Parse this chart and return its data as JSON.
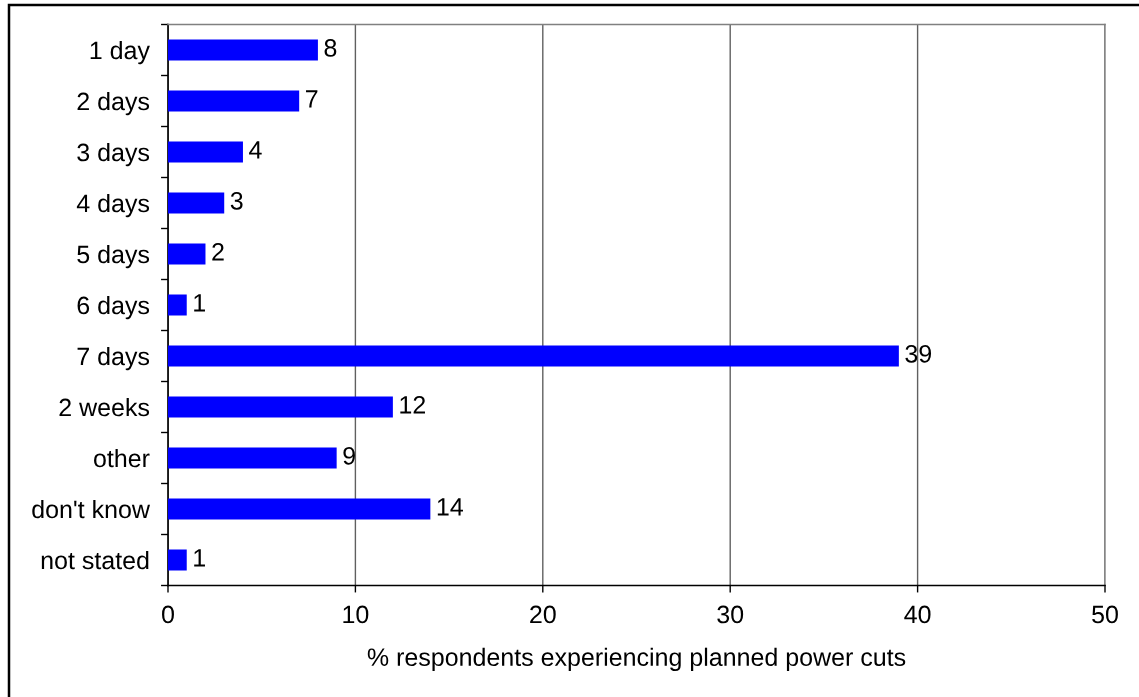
{
  "chart_data": {
    "type": "bar",
    "orientation": "horizontal",
    "categories": [
      "1 day",
      "2 days",
      "3 days",
      "4 days",
      "5 days",
      "6 days",
      "7 days",
      "2 weeks",
      "other",
      "don't know",
      "not stated"
    ],
    "values": [
      8,
      7,
      4,
      3,
      2,
      1,
      39,
      12,
      9,
      14,
      1
    ],
    "color": "#0000ff",
    "xlim": [
      0,
      50
    ],
    "xticks": [
      0,
      10,
      20,
      30,
      40,
      50
    ],
    "xlabel": "% respondents experiencing planned power cuts",
    "data_labels": true,
    "grid": "x"
  }
}
